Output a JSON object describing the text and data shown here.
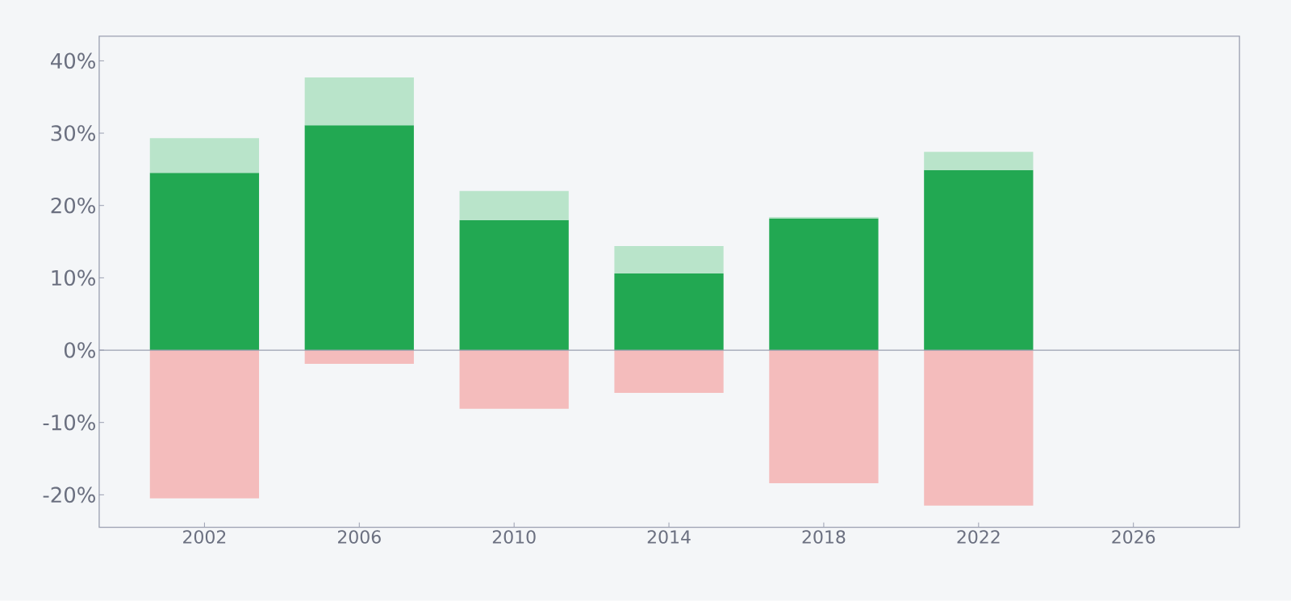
{
  "chart_data": {
    "type": "bar",
    "stacked": true,
    "x": [
      2002,
      2006,
      2010,
      2014,
      2018,
      2022
    ],
    "series": [
      {
        "color": "#22a852",
        "values": [
          24.5,
          31.1,
          18.0,
          10.6,
          18.2,
          24.9
        ]
      },
      {
        "color": "#b9e4ca",
        "values": [
          4.8,
          6.6,
          4.0,
          3.8,
          0.2,
          2.5
        ]
      },
      {
        "color": "#f4bcbc",
        "values": [
          -20.5,
          -1.9,
          -8.1,
          -5.9,
          -18.4,
          -21.5
        ]
      }
    ],
    "xlim": [
      1999.28,
      2028.74
    ],
    "xticks": [
      2002,
      2006,
      2010,
      2014,
      2018,
      2022,
      2026
    ],
    "ylim": [
      -24.5,
      43.4
    ],
    "yticks": [
      {
        "value": -20,
        "label": "-20%"
      },
      {
        "value": -10,
        "label": "-10%"
      },
      {
        "value": 0,
        "label": "0%"
      },
      {
        "value": 10,
        "label": "10%"
      },
      {
        "value": 20,
        "label": "20%"
      },
      {
        "value": 30,
        "label": "30%"
      },
      {
        "value": 40,
        "label": "40%"
      }
    ],
    "ref_lines": [
      {
        "axis": "y",
        "value": 0,
        "color": "#9a9fb0"
      }
    ]
  }
}
